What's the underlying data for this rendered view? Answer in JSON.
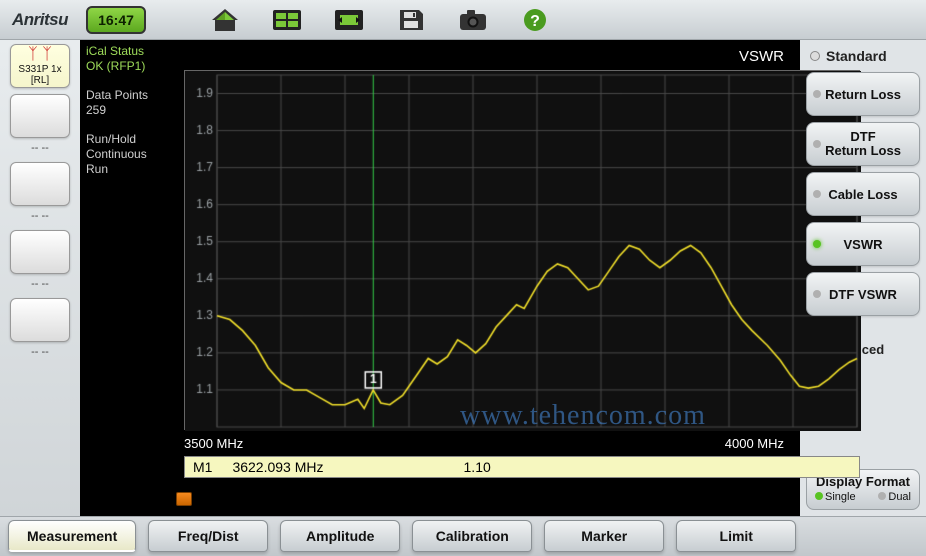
{
  "topbar": {
    "logo": "Anritsu",
    "clock": "16:47"
  },
  "left": {
    "slot1": {
      "line1": "S331P 1x",
      "line2": "[RL]"
    },
    "placeholder": "-- --"
  },
  "info": {
    "ical_label": "iCal Status",
    "ical_value": "OK (RFP1)",
    "datapoints_label": "Data Points",
    "datapoints_value": "259",
    "runhold_label": "Run/Hold",
    "runhold_mode": "Continuous",
    "runhold_state": "Run"
  },
  "chart": {
    "type": "line",
    "title": "VSWR",
    "x_start_label": "3500 MHz",
    "x_end_label": "4000 MHz",
    "xlim": [
      3500,
      4000
    ],
    "ylim": [
      1.0,
      1.95
    ],
    "ytick_step": 0.1,
    "xgrid_count": 10,
    "background_color": "#101010",
    "grid_color": "#484848",
    "grid_minor_color": "#2a2a2a",
    "trace_color": "#f2e02a",
    "marker_vline_color": "#34d14a",
    "axis_text_color": "#9aa0a4",
    "label_fontsize": 12,
    "marker": {
      "id": "1",
      "x_mhz": 3622.093,
      "y": 1.1
    },
    "marker_row": {
      "id": "M1",
      "freq": "3622.093 MHz",
      "value": "1.10"
    },
    "trace": [
      [
        3500,
        1.3
      ],
      [
        3510,
        1.29
      ],
      [
        3520,
        1.26
      ],
      [
        3530,
        1.22
      ],
      [
        3540,
        1.16
      ],
      [
        3550,
        1.12
      ],
      [
        3555,
        1.11
      ],
      [
        3560,
        1.1
      ],
      [
        3570,
        1.1
      ],
      [
        3580,
        1.08
      ],
      [
        3590,
        1.06
      ],
      [
        3600,
        1.06
      ],
      [
        3610,
        1.075
      ],
      [
        3615,
        1.05
      ],
      [
        3622,
        1.1
      ],
      [
        3628,
        1.065
      ],
      [
        3635,
        1.06
      ],
      [
        3645,
        1.085
      ],
      [
        3650,
        1.11
      ],
      [
        3658,
        1.15
      ],
      [
        3665,
        1.185
      ],
      [
        3672,
        1.17
      ],
      [
        3680,
        1.19
      ],
      [
        3688,
        1.235
      ],
      [
        3695,
        1.22
      ],
      [
        3702,
        1.2
      ],
      [
        3710,
        1.225
      ],
      [
        3718,
        1.27
      ],
      [
        3726,
        1.3
      ],
      [
        3734,
        1.33
      ],
      [
        3740,
        1.32
      ],
      [
        3750,
        1.38
      ],
      [
        3758,
        1.42
      ],
      [
        3766,
        1.44
      ],
      [
        3774,
        1.43
      ],
      [
        3782,
        1.4
      ],
      [
        3790,
        1.37
      ],
      [
        3798,
        1.38
      ],
      [
        3806,
        1.42
      ],
      [
        3814,
        1.46
      ],
      [
        3822,
        1.49
      ],
      [
        3830,
        1.48
      ],
      [
        3838,
        1.45
      ],
      [
        3846,
        1.43
      ],
      [
        3854,
        1.45
      ],
      [
        3862,
        1.475
      ],
      [
        3870,
        1.49
      ],
      [
        3878,
        1.47
      ],
      [
        3886,
        1.43
      ],
      [
        3894,
        1.38
      ],
      [
        3902,
        1.33
      ],
      [
        3910,
        1.29
      ],
      [
        3918,
        1.26
      ],
      [
        3930,
        1.22
      ],
      [
        3940,
        1.18
      ],
      [
        3948,
        1.14
      ],
      [
        3955,
        1.11
      ],
      [
        3962,
        1.105
      ],
      [
        3970,
        1.11
      ],
      [
        3978,
        1.13
      ],
      [
        3986,
        1.155
      ],
      [
        3994,
        1.175
      ],
      [
        4000,
        1.185
      ]
    ],
    "watermark": "www.tehencom.com"
  },
  "right": {
    "header": "Standard",
    "buttons": {
      "return_loss": "Return Loss",
      "dtf_return_loss": "DTF\nReturn Loss",
      "cable_loss": "Cable Loss",
      "vswr": "VSWR",
      "dtf_vswr": "DTF VSWR"
    },
    "advanced": "Advanced",
    "display_format": {
      "title": "Display Format",
      "single": "Single",
      "dual": "Dual"
    }
  },
  "tabs": {
    "measurement": "Measurement",
    "freq": "Freq/Dist",
    "amplitude": "Amplitude",
    "calibration": "Calibration",
    "marker": "Marker",
    "limit": "Limit"
  }
}
